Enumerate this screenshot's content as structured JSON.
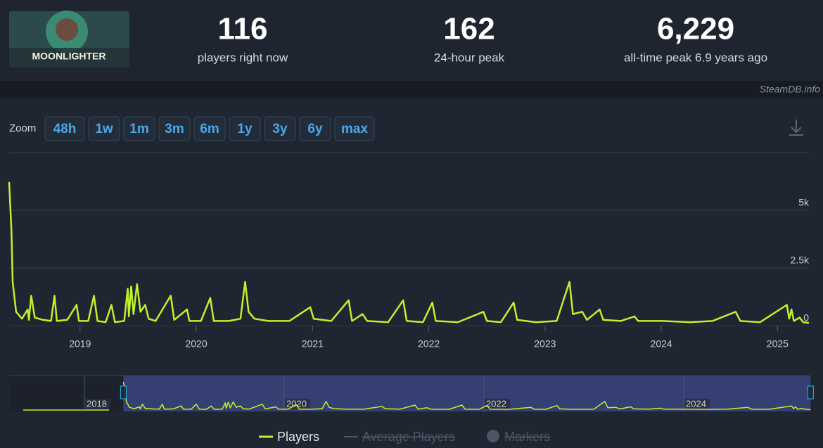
{
  "header": {
    "game": "MOONLIGHTER",
    "stats": [
      {
        "number": "116",
        "label": "players right now"
      },
      {
        "number": "162",
        "label": "24-hour peak"
      },
      {
        "number": "6,229",
        "label": "all-time peak 6.9 years ago"
      }
    ],
    "watermark": "SteamDB.info"
  },
  "zoom": {
    "label": "Zoom",
    "buttons": [
      "48h",
      "1w",
      "1m",
      "3m",
      "6m",
      "1y",
      "3y",
      "6y",
      "max"
    ]
  },
  "chart_data": {
    "type": "line",
    "x": [
      2018.39,
      2018.41,
      2018.42,
      2018.45,
      2018.5,
      2018.55,
      2018.56,
      2018.58,
      2018.61,
      2018.68,
      2018.75,
      2018.78,
      2018.8,
      2018.89,
      2018.97,
      2018.99,
      2019.07,
      2019.12,
      2019.15,
      2019.22,
      2019.27,
      2019.3,
      2019.38,
      2019.41,
      2019.42,
      2019.44,
      2019.46,
      2019.49,
      2019.52,
      2019.56,
      2019.59,
      2019.65,
      2019.78,
      2019.81,
      2019.92,
      2019.94,
      2020.04,
      2020.12,
      2020.15,
      2020.28,
      2020.38,
      2020.42,
      2020.45,
      2020.5,
      2020.62,
      2020.8,
      2020.98,
      2021.01,
      2021.16,
      2021.31,
      2021.34,
      2021.43,
      2021.47,
      2021.65,
      2021.78,
      2021.81,
      2021.95,
      2022.03,
      2022.06,
      2022.25,
      2022.47,
      2022.5,
      2022.62,
      2022.73,
      2022.76,
      2022.92,
      2023.1,
      2023.21,
      2023.24,
      2023.32,
      2023.36,
      2023.47,
      2023.5,
      2023.65,
      2023.77,
      2023.8,
      2024.01,
      2024.25,
      2024.44,
      2024.64,
      2024.68,
      2024.85,
      2025.08,
      2025.1,
      2025.12,
      2025.14,
      2025.19,
      2025.22,
      2025.27
    ],
    "series": [
      {
        "name": "Players",
        "color": "#bff22a",
        "values": [
          6229,
          4100,
          1900,
          600,
          300,
          700,
          250,
          1300,
          350,
          250,
          200,
          1300,
          200,
          250,
          900,
          200,
          200,
          1300,
          200,
          150,
          900,
          150,
          200,
          1600,
          400,
          1700,
          500,
          1800,
          600,
          900,
          300,
          200,
          1300,
          250,
          700,
          200,
          200,
          1200,
          200,
          200,
          300,
          1900,
          600,
          300,
          200,
          200,
          800,
          300,
          200,
          1100,
          200,
          500,
          200,
          150,
          1100,
          200,
          150,
          1000,
          200,
          150,
          600,
          200,
          150,
          1000,
          250,
          150,
          200,
          1900,
          500,
          600,
          250,
          700,
          250,
          200,
          400,
          200,
          200,
          150,
          200,
          600,
          200,
          150,
          900,
          300,
          700,
          200,
          350,
          150,
          116
        ]
      }
    ],
    "hidden_series": [
      "Average Players",
      "Markers"
    ],
    "xlim": [
      2018.39,
      2025.27
    ],
    "xticks": [
      2019,
      2020,
      2021,
      2022,
      2023,
      2024,
      2025
    ],
    "ylim": [
      0,
      7500
    ],
    "yticks": [
      0,
      {
        "value": 2500,
        "label": "2.5k"
      },
      {
        "value": 5000,
        "label": "5k"
      }
    ],
    "grid": true,
    "legend": "bottom",
    "navigator": {
      "xticks": [
        2018,
        2020,
        2022,
        2024
      ]
    }
  }
}
